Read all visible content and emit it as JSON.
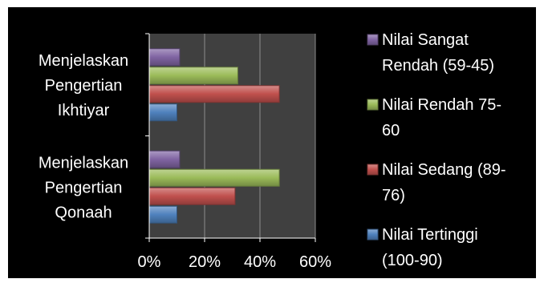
{
  "chart_data": {
    "type": "bar",
    "orientation": "horizontal",
    "categories": [
      "Menjelaskan Pengertian Qonaah",
      "Menjelaskan Pengertian Ikhtiyar"
    ],
    "category_lines": [
      [
        "Menjelaskan",
        "Pengertian",
        "Qonaah"
      ],
      [
        "Menjelaskan",
        "Pengertian",
        "Ikhtiyar"
      ]
    ],
    "series": [
      {
        "name": "Nilai Tertinggi (100-90)",
        "name_lines": [
          "Nilai Tertinggi",
          "(100-90)"
        ],
        "color": "#4f81bd",
        "values": [
          10,
          10
        ]
      },
      {
        "name": "Nilai Sedang (89-76)",
        "name_lines": [
          "Nilai Sedang (89-",
          "76)"
        ],
        "color": "#c0504d",
        "values": [
          31,
          47
        ]
      },
      {
        "name": "Nilai Rendah 75-60",
        "name_lines": [
          "Nilai Rendah 75-",
          "60"
        ],
        "color": "#9bbb59",
        "values": [
          47,
          32
        ]
      },
      {
        "name": "Nilai Sangat Rendah (59-45)",
        "name_lines": [
          "Nilai Sangat",
          "Rendah (59-45)"
        ],
        "color": "#8064a2",
        "values": [
          11,
          11
        ]
      }
    ],
    "xlim": [
      0,
      60
    ],
    "x_ticks": [
      "0%",
      "20%",
      "40%",
      "60%"
    ],
    "x_tick_values": [
      0,
      20,
      40,
      60
    ],
    "grid": true,
    "legend_position": "right",
    "legend_order": [
      3,
      2,
      1,
      0
    ],
    "plot_background": "#404040",
    "frame_background": "#000000"
  }
}
